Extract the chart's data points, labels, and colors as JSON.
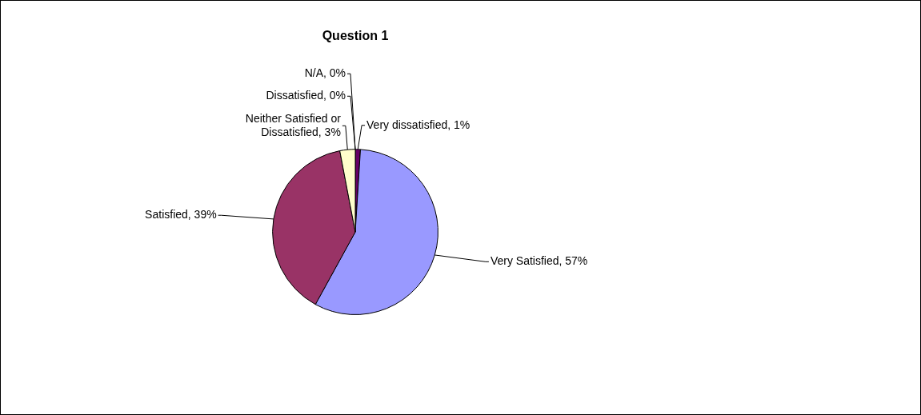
{
  "chart_data": {
    "type": "pie",
    "title": "Question 1",
    "categories": [
      "Very dissatisfied",
      "Very Satisfied",
      "Satisfied",
      "Neither Satisfied or Dissatisfied",
      "Dissatisfied",
      "N/A"
    ],
    "values": [
      1,
      57,
      39,
      3,
      0,
      0
    ],
    "colors": [
      "#660066",
      "#9999ff",
      "#993366",
      "#ffffcc",
      "#ccffff",
      "#ff8080"
    ],
    "value_labels": [
      ", 1%",
      ", 57%",
      ", 39%",
      ", 3%",
      ", 0%",
      ", 0%"
    ],
    "legend": false
  }
}
